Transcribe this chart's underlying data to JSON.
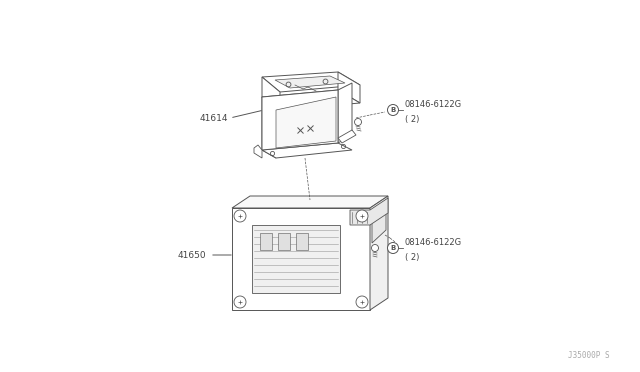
{
  "bg_color": "#ffffff",
  "fig_width": 6.4,
  "fig_height": 3.72,
  "dpi": 100,
  "label_41614": "41614",
  "label_41650": "41650",
  "label_bolt1": "08146-6122G\n( 2)",
  "label_bolt2": "08146-6122G\n( 2)",
  "watermark": "J35000P S",
  "text_color": "#444444",
  "line_color": "#555555",
  "line_width": 0.7,
  "font_size_label": 6.5,
  "font_size_bolt": 6.0,
  "font_size_watermark": 5.5
}
